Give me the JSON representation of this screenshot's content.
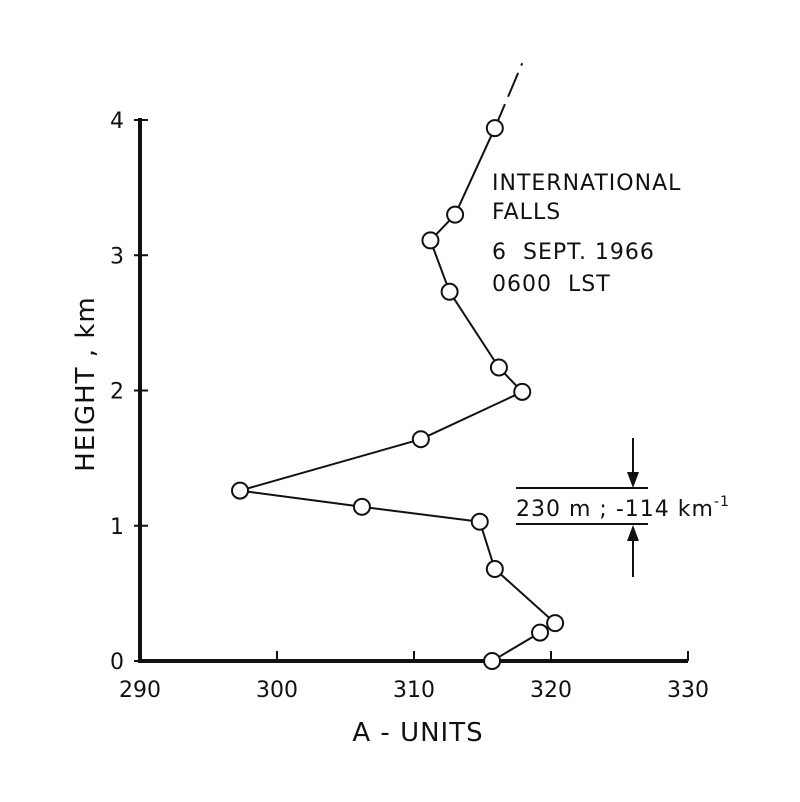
{
  "chart_data": {
    "type": "line",
    "title": "",
    "xlabel": "A - UNITS",
    "ylabel": "HEIGHT , km",
    "xlim": [
      290,
      330
    ],
    "ylim": [
      0,
      4
    ],
    "xticks": [
      290,
      300,
      310,
      320,
      330
    ],
    "yticks": [
      0,
      1,
      2,
      3,
      4
    ],
    "x_tick_labels": [
      "290",
      "300",
      "310",
      "320",
      "330"
    ],
    "y_tick_labels": [
      "0",
      "1",
      "2",
      "3",
      "4"
    ],
    "grid": false,
    "series": [
      {
        "points": [
          {
            "x": 315.7,
            "y": 0.0
          },
          {
            "x": 319.2,
            "y": 0.21
          },
          {
            "x": 320.3,
            "y": 0.28
          },
          {
            "x": 315.9,
            "y": 0.68
          },
          {
            "x": 314.8,
            "y": 1.03
          },
          {
            "x": 306.2,
            "y": 1.14
          },
          {
            "x": 297.3,
            "y": 1.26
          },
          {
            "x": 310.5,
            "y": 1.64
          },
          {
            "x": 317.9,
            "y": 1.99
          },
          {
            "x": 316.2,
            "y": 2.17
          },
          {
            "x": 312.6,
            "y": 2.73
          },
          {
            "x": 311.2,
            "y": 3.11
          },
          {
            "x": 313.0,
            "y": 3.3
          },
          {
            "x": 315.9,
            "y": 3.94
          }
        ],
        "extension": {
          "x": 317.9,
          "y": 4.42
        }
      }
    ],
    "annotations": {
      "station_lines": [
        "INTERNATIONAL",
        "FALLS",
        "6  SEPT. 1966",
        "0600  LST"
      ],
      "layer_label": "230 m ; -114 km",
      "layer_label_sup": "-1"
    }
  }
}
